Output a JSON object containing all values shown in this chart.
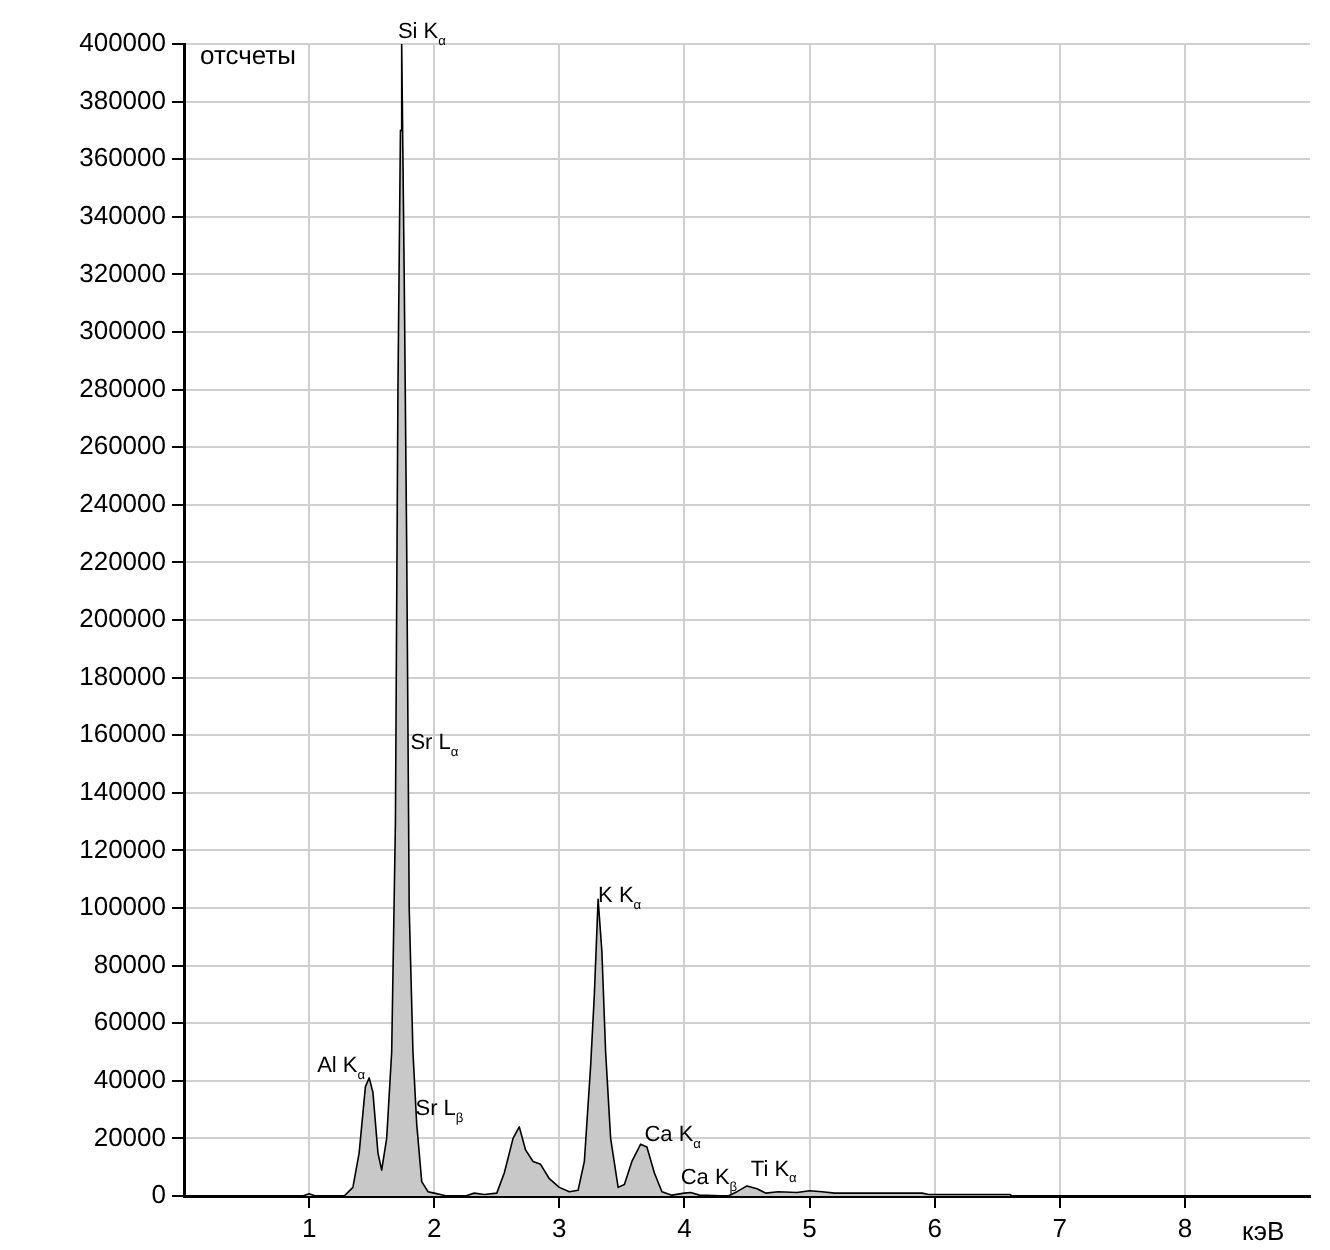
{
  "chart_data": {
    "type": "area",
    "ylabel": "отсчеты",
    "xlabel": "кэВ",
    "x": [
      0.95,
      1.0,
      1.05,
      1.28,
      1.35,
      1.4,
      1.45,
      1.48,
      1.51,
      1.55,
      1.58,
      1.62,
      1.66,
      1.69,
      1.71,
      1.73,
      1.74,
      1.76,
      1.78,
      1.8,
      1.83,
      1.86,
      1.9,
      1.95,
      2.0,
      2.05,
      2.1,
      2.25,
      2.32,
      2.4,
      2.5,
      2.56,
      2.63,
      2.68,
      2.73,
      2.79,
      2.85,
      2.92,
      3.0,
      3.08,
      3.15,
      3.2,
      3.25,
      3.28,
      3.31,
      3.34,
      3.37,
      3.41,
      3.47,
      3.52,
      3.58,
      3.65,
      3.7,
      3.76,
      3.82,
      3.9,
      4.0,
      4.05,
      4.12,
      4.35,
      4.42,
      4.5,
      4.58,
      4.65,
      4.75,
      4.9,
      5.0,
      5.1,
      5.2,
      5.9,
      5.95,
      6.6,
      6.62
    ],
    "series": [
      {
        "color": "#c8c8c8",
        "values": [
          0,
          800,
          0,
          0,
          3000,
          15000,
          38000,
          41000,
          36000,
          15000,
          9000,
          20000,
          50000,
          130000,
          280000,
          370000,
          400000,
          320000,
          225000,
          100000,
          50000,
          25000,
          5000,
          1500,
          1000,
          500,
          0,
          0,
          1000,
          500,
          1000,
          8000,
          20000,
          24000,
          16000,
          12000,
          11000,
          6000,
          3000,
          1500,
          2000,
          12000,
          45000,
          70000,
          103000,
          85000,
          50000,
          20000,
          3000,
          4000,
          12000,
          18000,
          17000,
          8000,
          1500,
          300,
          1000,
          1200,
          300,
          0,
          1500,
          3500,
          2500,
          1000,
          1500,
          1200,
          1800,
          1500,
          1000,
          1000,
          500,
          500,
          0
        ]
      }
    ],
    "xlim": [
      0,
      9
    ],
    "xticks": [
      1,
      2,
      3,
      4,
      5,
      6,
      7,
      8
    ],
    "ylim": [
      0,
      400000
    ],
    "yticks": [
      0,
      20000,
      40000,
      60000,
      80000,
      100000,
      120000,
      140000,
      160000,
      180000,
      200000,
      220000,
      240000,
      260000,
      280000,
      300000,
      320000,
      340000,
      360000,
      380000,
      400000
    ],
    "grid": true,
    "legend": false,
    "annotations": [
      {
        "text": "Si K$_{α}$",
        "x": 1.71,
        "y": 400000
      },
      {
        "text": "Sr L$_{α}$",
        "x": 1.81,
        "y": 153000
      },
      {
        "text": "Al K$_{α}$",
        "x": 1.48,
        "y": 41000
      },
      {
        "text": "Sr L$_{β}$",
        "x": 1.85,
        "y": 26000
      },
      {
        "text": "K K$_{α}$",
        "x": 3.31,
        "y": 100000
      },
      {
        "text": "Ca K$_{α}$",
        "x": 3.68,
        "y": 17000
      },
      {
        "text": "Ca K$_{β}$",
        "x": 3.97,
        "y": 2000
      },
      {
        "text": "Ti K$_{α}$",
        "x": 4.53,
        "y": 5000
      }
    ]
  }
}
